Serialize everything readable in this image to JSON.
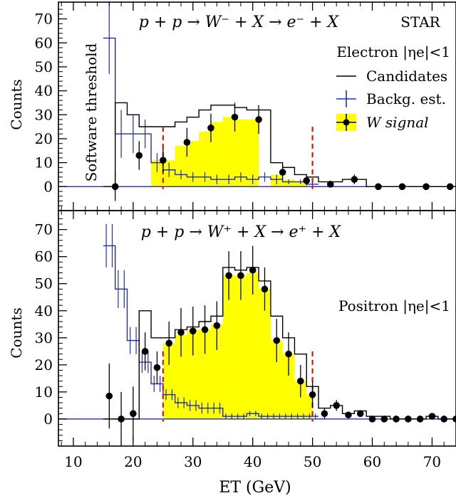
{
  "chart_data": [
    {
      "type": "histogram",
      "title": "p + p → W⁻ + X → e⁻ + X",
      "collaboration": "STAR",
      "region_label": "Electron |ηe|<1",
      "ylabel": "Counts",
      "xlim": [
        7.5,
        74
      ],
      "ylim": [
        -10,
        77
      ],
      "yticks": [
        0,
        10,
        20,
        30,
        40,
        50,
        60,
        70
      ],
      "threshold_label": "Software threshold",
      "cut_lines": [
        25,
        50
      ],
      "legend": {
        "position": "right",
        "entries": [
          "Candidates",
          "Backg. est.",
          "W signal"
        ]
      },
      "colors": {
        "candidates": "#000000",
        "background": "#1f2fb0",
        "signal_fill": "#ffff00",
        "cut": "#e01010"
      },
      "candidates": {
        "edges": [
          15,
          17,
          19,
          21,
          23,
          25,
          27,
          29,
          31,
          33,
          35,
          37,
          39,
          41,
          43,
          45,
          47,
          49,
          51,
          53,
          55,
          57,
          59,
          61,
          63,
          65,
          67,
          69,
          71,
          73,
          75
        ],
        "values": [
          0,
          35,
          30,
          25,
          25,
          25,
          27,
          29,
          32,
          34,
          34,
          33,
          32,
          32,
          10,
          8,
          5,
          4,
          2,
          2,
          3,
          3,
          0,
          0,
          0,
          0,
          0,
          0,
          0,
          0
        ]
      },
      "background": {
        "edges": [
          15,
          17,
          19,
          21,
          23,
          25,
          27,
          29,
          31,
          33,
          35,
          37,
          39,
          41,
          43,
          45,
          47,
          49,
          51
        ],
        "values": [
          62,
          22,
          22,
          22,
          10,
          7,
          5,
          4,
          4,
          3,
          3,
          4,
          3,
          4,
          3,
          2,
          2,
          1
        ],
        "errors": [
          15,
          10,
          8,
          6,
          4,
          3,
          2,
          2,
          2,
          2,
          2,
          2,
          2,
          2,
          2,
          1,
          1,
          1
        ]
      },
      "signal": {
        "edges": [
          23,
          25,
          27,
          29,
          31,
          33,
          35,
          37,
          39,
          41,
          43,
          45,
          47,
          49
        ],
        "values": [
          11,
          11,
          17,
          19,
          23,
          27,
          29,
          28,
          28,
          0,
          5,
          3,
          2
        ]
      },
      "points": {
        "x": [
          17,
          21,
          25,
          29,
          33,
          37,
          41,
          45,
          49,
          53,
          57,
          61,
          65,
          69,
          73
        ],
        "y": [
          0,
          13,
          11,
          18.5,
          24.5,
          29,
          28,
          6,
          2.5,
          1,
          3,
          0,
          0,
          0,
          0
        ],
        "errors": [
          6,
          6,
          5,
          6,
          6,
          6,
          6,
          3,
          2,
          1,
          2,
          0,
          0,
          0,
          0
        ]
      }
    },
    {
      "type": "histogram",
      "title": "p + p → W⁺ + X → e⁺ + X",
      "region_label": "Positron |ηe|<1",
      "xlabel": "ET (GeV)",
      "ylabel": "Counts",
      "xlim": [
        7.5,
        74
      ],
      "ylim": [
        -10,
        77
      ],
      "xticks": [
        10,
        20,
        30,
        40,
        50,
        60,
        70
      ],
      "yticks": [
        0,
        10,
        20,
        30,
        40,
        50,
        60,
        70
      ],
      "cut_lines": [
        25,
        50
      ],
      "candidates": {
        "edges": [
          15,
          16,
          17,
          18,
          19,
          20,
          21,
          22,
          23,
          24,
          25,
          26,
          27,
          28,
          29,
          30,
          31,
          32,
          33,
          34,
          35,
          36,
          37,
          38,
          39,
          40,
          41,
          42,
          43,
          44,
          45,
          46,
          47,
          48,
          49,
          50,
          51,
          52,
          53,
          54,
          55,
          56,
          57,
          58,
          59,
          60,
          61,
          62,
          63,
          64,
          65,
          66,
          67,
          68,
          69,
          70,
          71,
          72,
          73,
          74
        ],
        "values": [
          0,
          0,
          0,
          0,
          0,
          0,
          40,
          40,
          30,
          30,
          30,
          30,
          33,
          33,
          34,
          34,
          36,
          36,
          38,
          38,
          56,
          56,
          55,
          55,
          56,
          56,
          51,
          51,
          38,
          38,
          30,
          30,
          24,
          24,
          12,
          12,
          4,
          4,
          5,
          5,
          2,
          2,
          3,
          3,
          1,
          1,
          1,
          1,
          0,
          0,
          0,
          0,
          0,
          0,
          1,
          1,
          0,
          0,
          0
        ]
      },
      "background": {
        "edges": [
          15,
          16,
          17,
          18,
          19,
          20,
          21,
          22,
          23,
          24,
          25,
          26,
          27,
          28,
          29,
          30,
          31,
          32,
          33,
          34,
          35,
          36,
          37,
          38,
          39,
          40,
          41,
          42,
          43,
          44,
          45,
          46,
          47,
          48,
          49,
          50,
          51
        ],
        "values": [
          64,
          64,
          48,
          48,
          29,
          29,
          21,
          21,
          13,
          13,
          9,
          9,
          6,
          6,
          5,
          5,
          4,
          4,
          4,
          4,
          1,
          1,
          1,
          1,
          2,
          2,
          1,
          1,
          1,
          1,
          1,
          1,
          1,
          1,
          1,
          1
        ],
        "errors": [
          8,
          8,
          7,
          7,
          5,
          5,
          4,
          4,
          3,
          3,
          2,
          2,
          2,
          2,
          2,
          2,
          2,
          2,
          2,
          2,
          1,
          1,
          1,
          1,
          1,
          1,
          1,
          1,
          1,
          1,
          1,
          1,
          1,
          1,
          1,
          1
        ]
      },
      "signal": {
        "edges": [
          25,
          27,
          29,
          31,
          33,
          35,
          37,
          39,
          41,
          43,
          45,
          47,
          49,
          50
        ],
        "values": [
          28,
          31,
          33,
          33,
          35,
          53,
          53,
          54,
          48,
          29,
          24,
          14,
          9
        ]
      },
      "points": {
        "x": [
          16,
          18,
          20,
          22,
          24,
          26,
          28,
          30,
          32,
          34,
          36,
          38,
          40,
          42,
          44,
          46,
          48,
          50,
          52,
          54,
          56,
          58,
          60,
          62,
          64,
          66,
          68,
          70,
          72,
          74
        ],
        "y": [
          8.5,
          0,
          2,
          25,
          19,
          28,
          32,
          32.5,
          33,
          34.5,
          53,
          53,
          55,
          48,
          29,
          24,
          14,
          9,
          2,
          5,
          1.5,
          2,
          0,
          0,
          0,
          0,
          0,
          1,
          0,
          0
        ],
        "errors": [
          12,
          10,
          10,
          7,
          6,
          8,
          9,
          9,
          9,
          9,
          9,
          9,
          9,
          8,
          8,
          8,
          6,
          5,
          2,
          2,
          1,
          1,
          0,
          0,
          0,
          0,
          0,
          1,
          0,
          0
        ]
      }
    }
  ]
}
